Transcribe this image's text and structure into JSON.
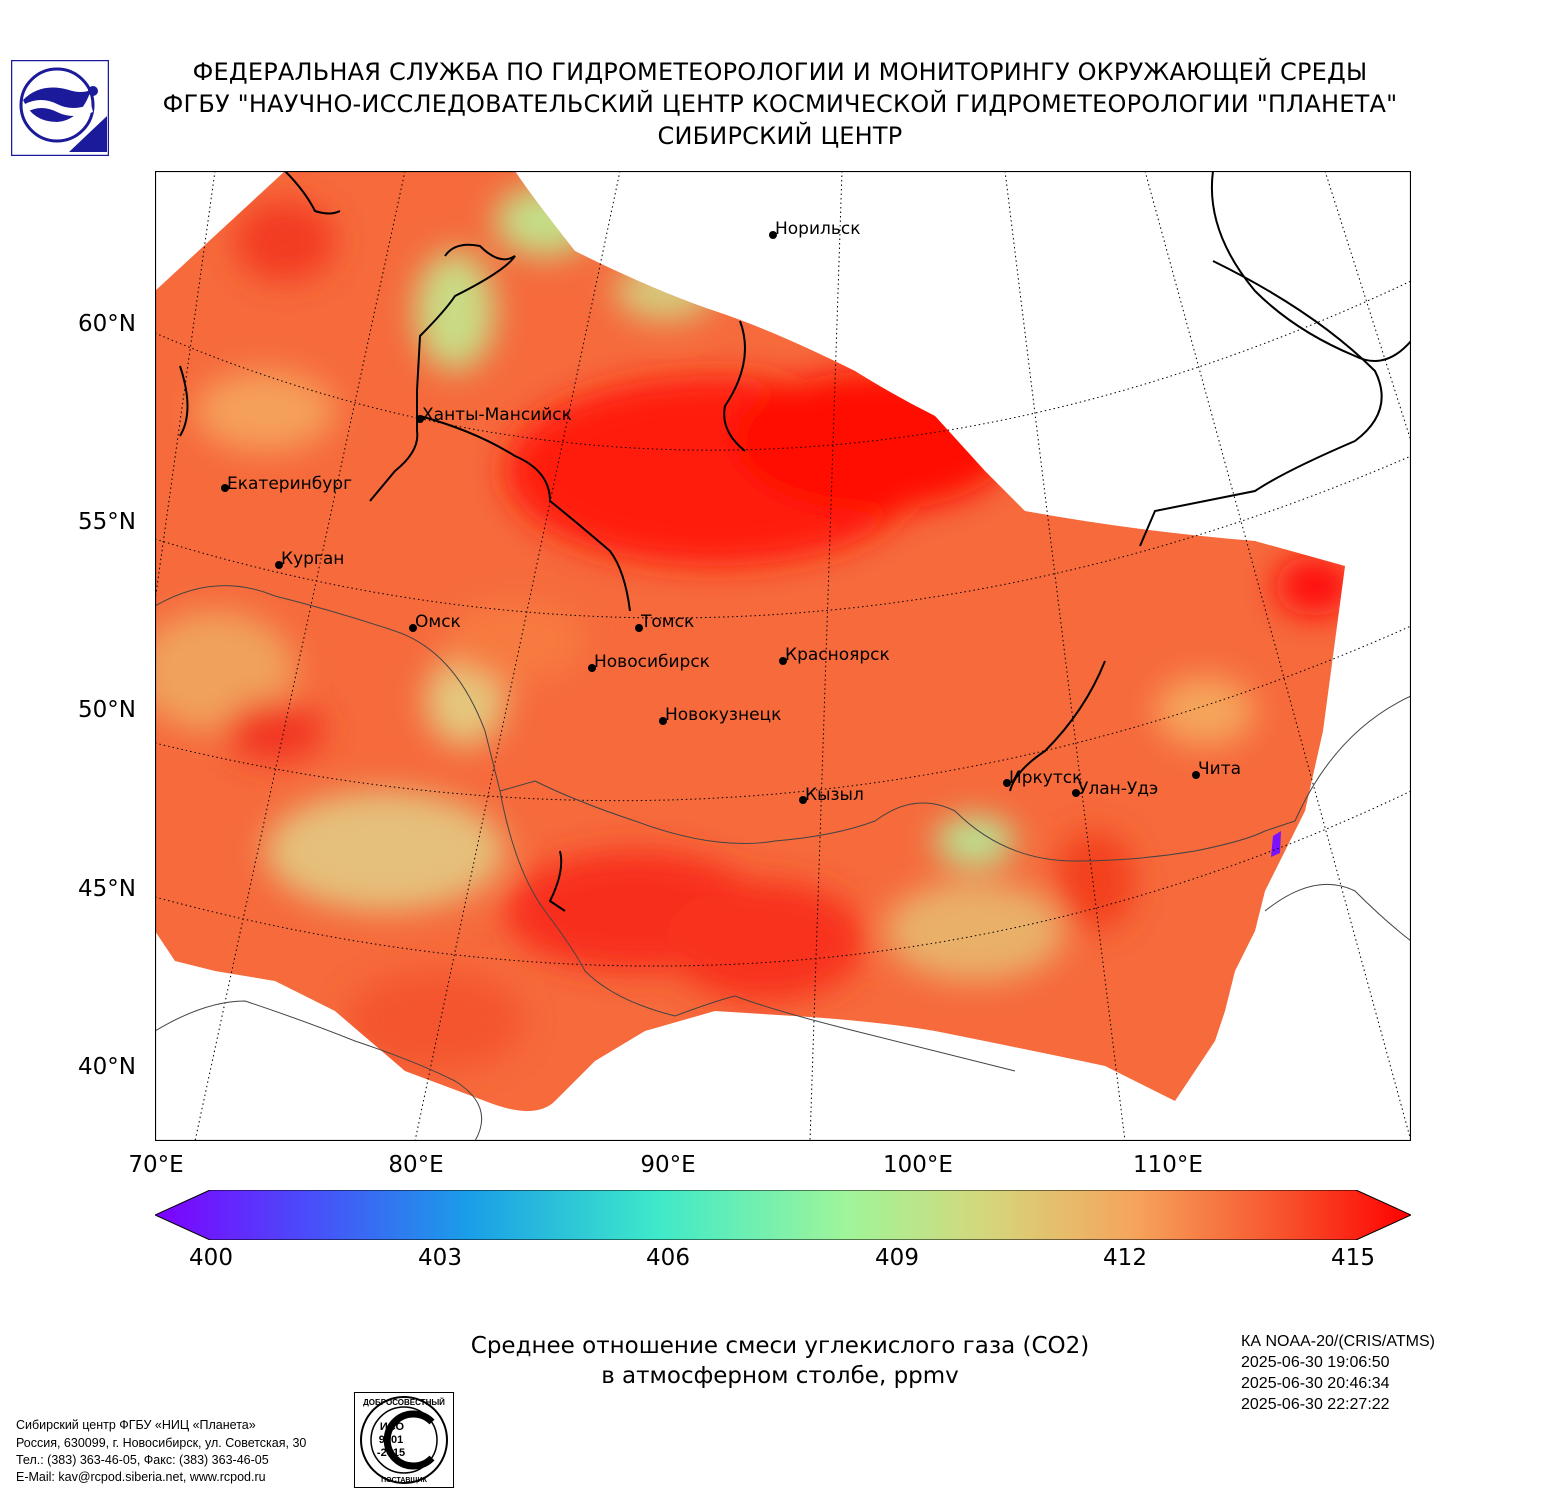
{
  "header": {
    "line1": "ФЕДЕРАЛЬНАЯ СЛУЖБА ПО ГИДРОМЕТЕОРОЛОГИИ И МОНИТОРИНГУ ОКРУЖАЮЩЕЙ СРЕДЫ",
    "line2": "ФГБУ \"НАУЧНО-ИССЛЕДОВАТЕЛЬСКИЙ ЦЕНТР КОСМИЧЕСКОЙ ГИДРОМЕТЕОРОЛОГИИ \"ПЛАНЕТА\"",
    "line3": "СИБИРСКИЙ ЦЕНТР"
  },
  "map": {
    "latitude_labels": [
      "60°N",
      "55°N",
      "50°N",
      "45°N",
      "40°N"
    ],
    "longitude_labels": [
      "70°E",
      "80°E",
      "90°E",
      "100°E",
      "110°E"
    ],
    "cities": [
      {
        "name": "Норильск"
      },
      {
        "name": "Ханты-Мансийск"
      },
      {
        "name": "Екатеринбург"
      },
      {
        "name": "Курган"
      },
      {
        "name": "Омск"
      },
      {
        "name": "Томск"
      },
      {
        "name": "Новосибирск"
      },
      {
        "name": "Красноярск"
      },
      {
        "name": "Новокузнецк"
      },
      {
        "name": "Кызыл"
      },
      {
        "name": "Иркутск"
      },
      {
        "name": "Улан-Удэ"
      },
      {
        "name": "Чита"
      }
    ]
  },
  "colorbar": {
    "min": 400,
    "max": 415,
    "tick_labels": [
      "400",
      "403",
      "406",
      "409",
      "412",
      "415"
    ],
    "colors": {
      "low": "#7f00ff",
      "mid_low": "#00b4e6",
      "mid": "#9ff59a",
      "mid_high": "#f6a45c",
      "high": "#ff0000"
    }
  },
  "title": {
    "line1": "Среднее отношение смеси углекислого газа (CO2)",
    "line2": "в атмосферном столбе, ppmv"
  },
  "satellite_info": {
    "satellite": "КА NOAA-20/(CRIS/ATMS)",
    "times": [
      "2025-06-30 19:06:50",
      "2025-06-30 20:46:34",
      "2025-06-30 22:27:22"
    ]
  },
  "footer": {
    "lines": [
      "Сибирский центр ФГБУ «НИЦ «Планета»",
      "Россия, 630099, г. Новосибирск, ул. Советская, 30",
      "Тел.: (383) 363-46-05, Факс: (383) 363-46-05",
      "E-Mail: kav@rcpod.siberia.net, www.rcpod.ru"
    ]
  },
  "certification_badge": {
    "top_text": "ДОБРОСОВЕСТНЫЙ",
    "iso_line1": "ИСО",
    "iso_line2": "9001",
    "iso_line3": "-2015",
    "bottom_text": "ПОСТАВЩИК"
  }
}
